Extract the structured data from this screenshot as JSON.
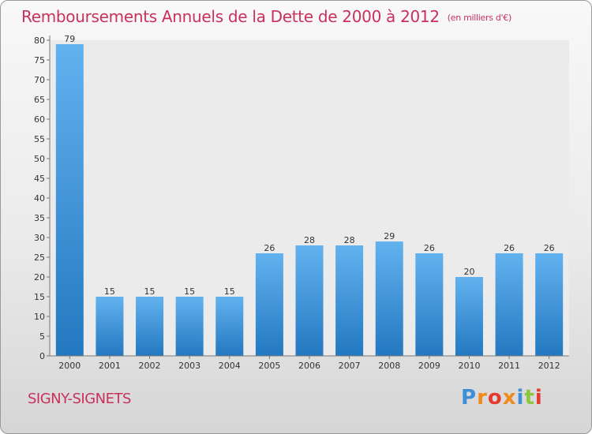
{
  "title": "Remboursements Annuels de la Dette de 2000 à 2012",
  "subtitle": "(en milliers d'€)",
  "city": "SIGNY-SIGNETS",
  "brand": {
    "text": "Proxiti",
    "letter_colors": [
      "#3c8fd8",
      "#f08a1c",
      "#e63a2e",
      "#f08a1c",
      "#3c8fd8",
      "#8cc63f",
      "#e63a2e"
    ]
  },
  "colors": {
    "accent": "#c8315e",
    "bar": "#3b95dd",
    "bar_light": "#62b2ef",
    "bar_dark": "#2378c0"
  },
  "chart_data": {
    "type": "bar",
    "categories": [
      "2000",
      "2001",
      "2002",
      "2003",
      "2004",
      "2005",
      "2006",
      "2007",
      "2008",
      "2009",
      "2010",
      "2011",
      "2012"
    ],
    "values": [
      79,
      15,
      15,
      15,
      15,
      26,
      28,
      28,
      29,
      26,
      20,
      26,
      26
    ],
    "title": "Remboursements Annuels de la Dette de 2000 à 2012",
    "xlabel": "",
    "ylabel": "",
    "ylim": [
      0,
      80
    ],
    "yticks": [
      0,
      5,
      10,
      15,
      20,
      25,
      30,
      35,
      40,
      45,
      50,
      55,
      60,
      65,
      70,
      75,
      80
    ],
    "grid": false,
    "data_labels": true
  }
}
